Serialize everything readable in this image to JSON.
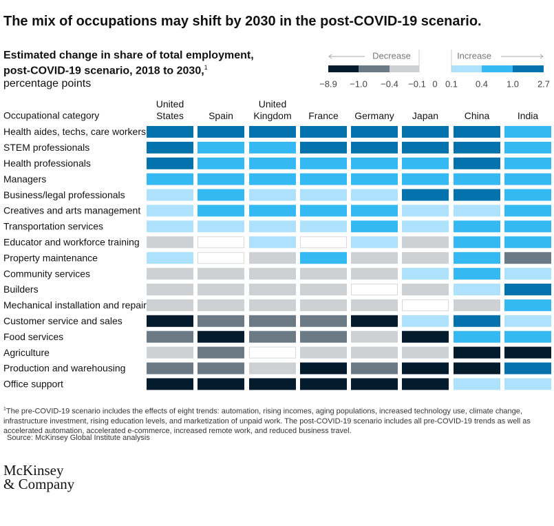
{
  "chart_data": {
    "type": "heatmap",
    "title": "The mix of occupations may shift by 2030 in the post-COVID-19 scenario.",
    "subtitle": [
      "Estimated change in share of total employment,",
      "post-COVID-19 scenario, 2018 to 2030,"
    ],
    "subtitle_note": "1",
    "unit": "percentage points",
    "row_header": "Occupational category",
    "columns": [
      "United States",
      "Spain",
      "United Kingdom",
      "France",
      "Germany",
      "Japan",
      "China",
      "India"
    ],
    "categories": [
      "Health aides, techs, care workers",
      "STEM professionals",
      "Health professionals",
      "Managers",
      "Business/legal professionals",
      "Creatives and arts management",
      "Transportation services",
      "Educator and workforce training",
      "Property maintenance",
      "Community services",
      "Builders",
      "Mechanical installation and repair",
      "Customer service and sales",
      "Food services",
      "Agriculture",
      "Production and warehousing",
      "Office support"
    ],
    "values": [
      [
        1.5,
        1.5,
        1.5,
        1.5,
        1.5,
        1.5,
        1.5,
        0.6
      ],
      [
        1.5,
        0.6,
        0.6,
        1.5,
        1.5,
        1.5,
        1.5,
        0.6
      ],
      [
        1.5,
        0.6,
        0.6,
        0.6,
        0.6,
        0.6,
        1.5,
        0.6
      ],
      [
        0.6,
        0.6,
        0.6,
        0.6,
        0.6,
        0.6,
        0.6,
        0.6
      ],
      [
        0.2,
        0.6,
        0.2,
        0.2,
        0.2,
        1.5,
        1.5,
        0.6
      ],
      [
        0.2,
        0.6,
        0.6,
        0.6,
        0.6,
        0.2,
        0.2,
        0.6
      ],
      [
        0.2,
        0.2,
        0.2,
        0.2,
        0.6,
        0.2,
        0.6,
        0.6
      ],
      [
        -0.2,
        0,
        0.2,
        0,
        0.2,
        -0.2,
        0.6,
        0.6
      ],
      [
        0.2,
        0,
        -0.2,
        0.6,
        -0.2,
        -0.2,
        0.6,
        -0.6
      ],
      [
        -0.2,
        -0.2,
        -0.2,
        -0.2,
        -0.2,
        0.2,
        0.6,
        0.2
      ],
      [
        -0.2,
        -0.2,
        -0.2,
        -0.2,
        0,
        -0.2,
        0.2,
        1.5
      ],
      [
        -0.2,
        -0.2,
        -0.2,
        -0.2,
        -0.2,
        0,
        -0.2,
        0.6
      ],
      [
        -2,
        -0.6,
        -0.6,
        -0.6,
        -2,
        0.2,
        1.5,
        0.2
      ],
      [
        -0.6,
        -2,
        -0.6,
        -0.6,
        -0.2,
        -2,
        0.6,
        0.6
      ],
      [
        -0.2,
        -0.6,
        0,
        -0.2,
        -0.2,
        -0.2,
        -2,
        -2
      ],
      [
        -0.6,
        -0.6,
        -0.2,
        -2,
        -0.6,
        -2,
        -2,
        1.5
      ],
      [
        -2,
        -2,
        -2,
        -2,
        -2,
        -2,
        0.2,
        0.2
      ]
    ],
    "legend": {
      "decrease": "Decrease",
      "increase": "Increase",
      "ticks": [
        {
          "value": -8.9,
          "label": "−8.9"
        },
        {
          "value": -1,
          "label": "−1.0"
        },
        {
          "value": -0.4,
          "label": "−0.4"
        },
        {
          "value": -0.1,
          "label": "−0.1"
        },
        0,
        0.1,
        0.4,
        {
          "value": 1,
          "label": "1.0"
        },
        2.7
      ],
      "colors": [
        "#041a2d",
        "#6b7a85",
        "#cdd1d4",
        "#ffffff",
        "#ffffff",
        "#aee1fb",
        "#34b9f3",
        "#0472ad"
      ]
    },
    "footnote": "The pre-COVID-19 scenario includes the effects of eight trends: automation, rising incomes, aging populations, increased technology use, climate change, infrastructure investment, rising education levels, and marketization of unpaid work. The post-COVID-19 scenario includes all pre-COVID-19 trends as well as accelerated automation, accelerated e-commerce, increased remote work, and reduced business travel.",
    "footnote_marker": "1",
    "source": "Source: McKinsey Global Institute analysis",
    "logo": [
      "McKinsey",
      "& Company"
    ]
  }
}
